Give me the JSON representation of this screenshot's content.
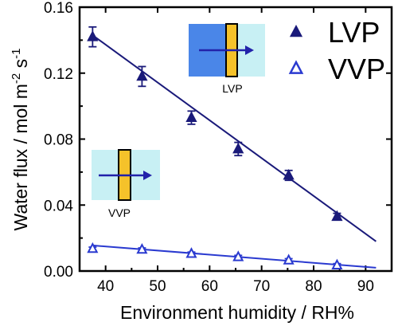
{
  "chart_data": {
    "type": "scatter",
    "xlabel": "Environment humidity / RH%",
    "ylabel_main": "Water flux / mol m",
    "ylabel_sup1": "-2",
    "ylabel_mid": " s",
    "ylabel_sup2": "-1",
    "xlim": [
      35,
      95
    ],
    "ylim": [
      0,
      0.16
    ],
    "xticks": [
      40,
      50,
      60,
      70,
      80,
      90
    ],
    "yticks": [
      0.0,
      0.04,
      0.08,
      0.12,
      0.16
    ],
    "ytick_labels": [
      "0.00",
      "0.04",
      "0.08",
      "0.12",
      "0.16"
    ],
    "legend_position": "top-right",
    "series": [
      {
        "name": "LVP",
        "marker": "filled-triangle",
        "color": "#1a1a7a",
        "x": [
          37.5,
          47,
          56.5,
          65.5,
          75.2,
          84.5
        ],
        "y": [
          0.142,
          0.118,
          0.093,
          0.074,
          0.058,
          0.033
        ],
        "err": [
          0.006,
          0.006,
          0.004,
          0.004,
          0.003,
          0.002
        ],
        "fit": {
          "x": [
            37.5,
            92
          ],
          "y": [
            0.143,
            0.018
          ]
        }
      },
      {
        "name": "VVP",
        "marker": "open-triangle",
        "color": "#2a3ad0",
        "x": [
          37.5,
          47,
          56.5,
          65.5,
          75.2,
          84.5
        ],
        "y": [
          0.0135,
          0.013,
          0.0105,
          0.0085,
          0.0065,
          0.0035
        ],
        "err": [
          0.001,
          0.001,
          0.001,
          0.001,
          0.001,
          0.001
        ],
        "fit": {
          "x": [
            37.5,
            92
          ],
          "y": [
            0.0155,
            0.002
          ]
        }
      }
    ]
  },
  "insets": {
    "lvp_label": "LVP",
    "vvp_label": "VVP"
  },
  "colors": {
    "membrane": "#f5c22a",
    "light_region": "#c8f0f4",
    "liquid_region": "#4a86e8",
    "arrow": "#2222aa"
  }
}
